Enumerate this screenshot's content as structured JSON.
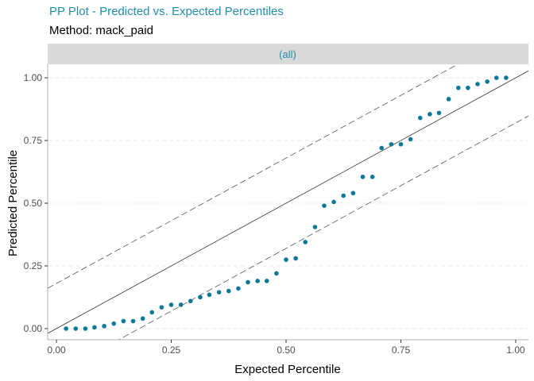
{
  "header": {
    "title": "PP Plot - Predicted vs. Expected Percentiles",
    "subtitle": "Method: mack_paid"
  },
  "colors": {
    "title": "#1f8ea8",
    "points": "#0a7896",
    "strip_bg": "#d9d9d9",
    "strip_text": "#1f8ea8",
    "grid": "#ebebeb",
    "ref_line": "#333333",
    "band_line": "#555555"
  },
  "chart_data": {
    "type": "scatter",
    "facet_label": "(all)",
    "xlabel": "Expected Percentile",
    "ylabel": "Predicted Percentile",
    "xlim": [
      0,
      1
    ],
    "ylim": [
      0,
      1
    ],
    "x_ticks": [
      0.0,
      0.25,
      0.5,
      0.75,
      1.0
    ],
    "x_tick_labels": [
      "0.00",
      "0.25",
      "0.50",
      "0.75",
      "1.00"
    ],
    "y_ticks": [
      0.0,
      0.25,
      0.5,
      0.75,
      1.0
    ],
    "y_tick_labels": [
      "0.00",
      "0.25",
      "0.50",
      "0.75",
      "1.00"
    ],
    "grid": "dashed-horizontal",
    "reference_line": {
      "intercept": 0,
      "slope": 1,
      "style": "solid"
    },
    "confidence_bands": [
      {
        "intercept": 0.18,
        "slope": 1,
        "style": "longdash"
      },
      {
        "intercept": -0.18,
        "slope": 1,
        "style": "longdash"
      }
    ],
    "x": [
      0.021,
      0.042,
      0.063,
      0.083,
      0.104,
      0.125,
      0.146,
      0.167,
      0.188,
      0.208,
      0.229,
      0.25,
      0.271,
      0.292,
      0.313,
      0.333,
      0.354,
      0.375,
      0.396,
      0.417,
      0.438,
      0.458,
      0.479,
      0.5,
      0.521,
      0.542,
      0.563,
      0.583,
      0.604,
      0.625,
      0.646,
      0.667,
      0.688,
      0.708,
      0.729,
      0.75,
      0.771,
      0.792,
      0.813,
      0.833,
      0.854,
      0.875,
      0.896,
      0.917,
      0.938,
      0.958,
      0.979
    ],
    "y": [
      0.0,
      0.0,
      0.0,
      0.005,
      0.01,
      0.02,
      0.03,
      0.03,
      0.04,
      0.065,
      0.085,
      0.095,
      0.095,
      0.11,
      0.125,
      0.135,
      0.145,
      0.15,
      0.16,
      0.185,
      0.19,
      0.19,
      0.22,
      0.275,
      0.28,
      0.345,
      0.405,
      0.49,
      0.505,
      0.53,
      0.54,
      0.605,
      0.605,
      0.72,
      0.735,
      0.735,
      0.755,
      0.84,
      0.855,
      0.86,
      0.915,
      0.96,
      0.96,
      0.975,
      0.985,
      1.0,
      1.0
    ]
  }
}
